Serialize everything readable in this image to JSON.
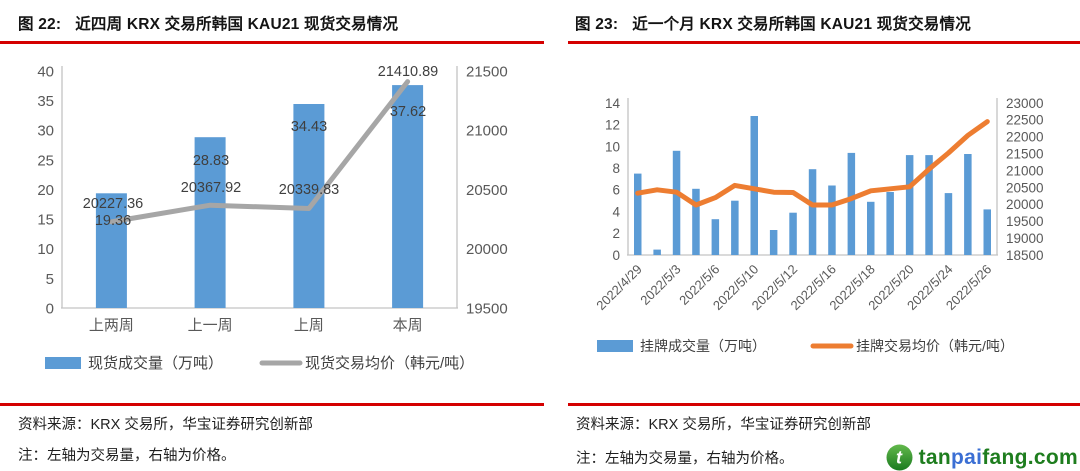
{
  "figures": [
    {
      "title_prefix": "图 22:",
      "title_text": "近四周 KRX 交易所韩国 KAU21 现货交易情况",
      "source_text": "资料来源：KRX 交易所，华宝证券研究创新部",
      "note_text": "注：左轴为交易量，右轴为价格。"
    },
    {
      "title_prefix": "图 23:",
      "title_text": "近一个月 KRX 交易所韩国 KAU21 现货交易情况",
      "source_text": "资料来源：KRX 交易所，华宝证券研究创新部",
      "note_text": "注：左轴为交易量，右轴为价格。"
    }
  ],
  "chart_data": [
    {
      "type": "bar",
      "combo": "bar+line-dual-axis",
      "title": "近四周 KRX 交易所韩国 KAU21 现货交易情况",
      "categories": [
        "上两周",
        "上一周",
        "上周",
        "本周"
      ],
      "series": [
        {
          "name": "现货成交量（万吨）",
          "type": "bar",
          "axis": "left",
          "color": "#5B9BD5",
          "values": [
            19.36,
            28.83,
            34.43,
            37.62
          ]
        },
        {
          "name": "现货交易均价（韩元/吨）",
          "type": "line",
          "axis": "right",
          "color": "#A6A6A6",
          "values": [
            20227.36,
            20367.92,
            20339.83,
            21410.89
          ]
        }
      ],
      "left_axis": {
        "min": 0,
        "max": 40,
        "step": 5
      },
      "right_axis": {
        "min": 19500,
        "max": 21500,
        "step": 500
      },
      "data_labels": true,
      "grid": false,
      "legend_position": "bottom",
      "x_tick_rotation": 0
    },
    {
      "type": "bar",
      "combo": "bar+line-dual-axis",
      "title": "近一个月 KRX 交易所韩国 KAU21 现货交易情况",
      "categories": [
        "2022/4/29",
        "",
        "2022/5/3",
        "",
        "2022/5/6",
        "",
        "2022/5/10",
        "",
        "2022/5/12",
        "",
        "2022/5/16",
        "",
        "2022/5/18",
        "",
        "2022/5/20",
        "",
        "2022/5/24",
        "",
        "2022/5/26"
      ],
      "series": [
        {
          "name": "挂牌成交量（万吨）",
          "type": "bar",
          "axis": "left",
          "color": "#5B9BD5",
          "values": [
            7.5,
            0.5,
            9.6,
            6.1,
            3.3,
            5.0,
            12.8,
            2.3,
            3.9,
            7.9,
            6.4,
            9.4,
            4.9,
            5.8,
            9.2,
            9.2,
            5.7,
            9.3,
            4.2
          ]
        },
        {
          "name": "挂牌交易均价（韩元/吨）",
          "type": "line",
          "axis": "right",
          "color": "#ED7D31",
          "values": [
            20330,
            20430,
            20360,
            19980,
            20200,
            20560,
            20460,
            20360,
            20350,
            19980,
            19980,
            20170,
            20400,
            20460,
            20520,
            21040,
            21520,
            22040,
            22450
          ]
        }
      ],
      "left_axis": {
        "min": 0,
        "max": 14,
        "step": 2
      },
      "right_axis": {
        "min": 18500,
        "max": 23000,
        "step": 500
      },
      "data_labels": false,
      "grid": false,
      "legend_position": "bottom",
      "x_tick_rotation": 45
    }
  ],
  "watermark": {
    "icon": "leaf-circle-icon",
    "parts": [
      {
        "text": "tan",
        "color": "#1e7d1e"
      },
      {
        "text": "pai",
        "color": "#3b6fd4"
      },
      {
        "text": "fang",
        "color": "#1e7d1e"
      },
      {
        "text": ".com",
        "color": "#1e7d1e"
      }
    ]
  },
  "colors": {
    "rule_red": "#d40000",
    "bar_blue": "#5B9BD5",
    "line_gray": "#A6A6A6",
    "line_orange": "#ED7D31",
    "tick_text": "#595959",
    "data_label_text": "#3f3f3f",
    "axis_line": "#c3c3c3"
  }
}
